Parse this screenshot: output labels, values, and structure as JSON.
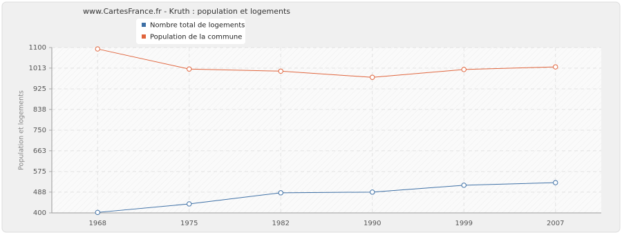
{
  "chart_data": {
    "type": "line",
    "title": "www.CartesFrance.fr - Kruth : population et logements",
    "y_label": "Population et logements",
    "categories": [
      "1968",
      "1975",
      "1982",
      "1990",
      "1999",
      "2007"
    ],
    "series": [
      {
        "name": "Nombre total de logements",
        "color": "#3d6fa5",
        "values": [
          402,
          438,
          485,
          488,
          517,
          528
        ]
      },
      {
        "name": "Population de la commune",
        "color": "#e0643c",
        "values": [
          1094,
          1009,
          1000,
          974,
          1007,
          1018
        ]
      }
    ],
    "ylim": [
      400,
      1100
    ],
    "yticks": [
      400,
      488,
      575,
      663,
      750,
      838,
      925,
      1013,
      1100
    ],
    "grid": true
  }
}
